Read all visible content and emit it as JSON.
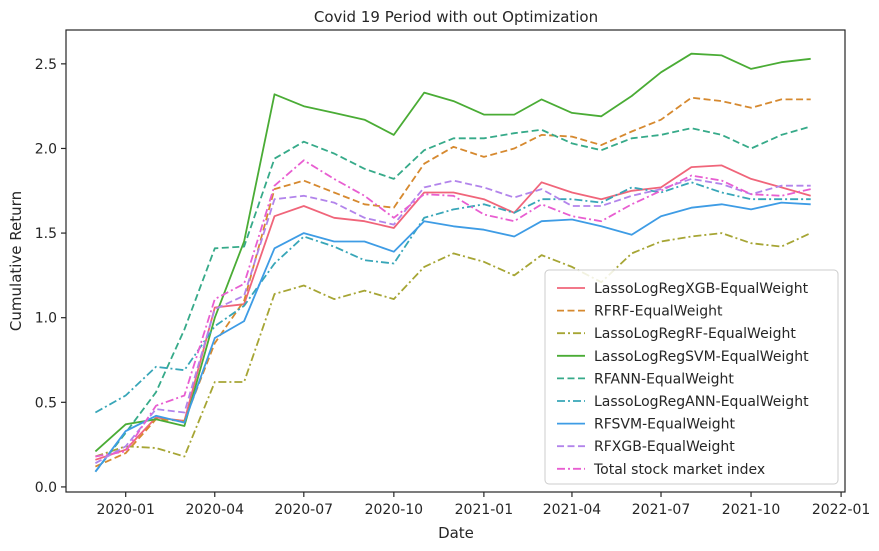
{
  "chart_data": {
    "type": "line",
    "title": "Covid 19 Period with out Optimization",
    "xlabel": "Date",
    "ylabel": "Cumulative Return",
    "x_ticks": [
      "2020-01",
      "2020-04",
      "2020-07",
      "2020-10",
      "2021-01",
      "2021-04",
      "2021-07",
      "2021-10",
      "2022-01"
    ],
    "y_ticks": [
      "0.0",
      "0.5",
      "1.0",
      "1.5",
      "2.0",
      "2.5"
    ],
    "ylim": [
      -0.03,
      2.7
    ],
    "xlim": [
      "2019-11-01",
      "2022-01-05"
    ],
    "legend_position": "lower-right",
    "x": [
      "2019-12-01",
      "2020-01-01",
      "2020-02-01",
      "2020-03-01",
      "2020-04-01",
      "2020-05-01",
      "2020-06-01",
      "2020-07-01",
      "2020-08-01",
      "2020-09-01",
      "2020-10-01",
      "2020-11-01",
      "2020-12-01",
      "2021-01-01",
      "2021-02-01",
      "2021-03-01",
      "2021-04-01",
      "2021-05-01",
      "2021-06-01",
      "2021-07-01",
      "2021-08-01",
      "2021-09-01",
      "2021-10-01",
      "2021-11-01",
      "2021-12-01"
    ],
    "series": [
      {
        "name": "LassoLogRegXGB-EqualWeight",
        "color": "#f0657a",
        "dash": "solid",
        "values": [
          0.16,
          0.22,
          0.41,
          0.39,
          1.06,
          1.08,
          1.6,
          1.66,
          1.59,
          1.57,
          1.53,
          1.74,
          1.74,
          1.7,
          1.62,
          1.8,
          1.74,
          1.7,
          1.75,
          1.77,
          1.89,
          1.9,
          1.82,
          1.77,
          1.72
        ]
      },
      {
        "name": "RFRF-EqualWeight",
        "color": "#d6892f",
        "dash": "dashed",
        "values": [
          0.12,
          0.2,
          0.4,
          0.39,
          0.85,
          1.1,
          1.76,
          1.81,
          1.74,
          1.67,
          1.65,
          1.91,
          2.01,
          1.95,
          2.0,
          2.08,
          2.07,
          2.02,
          2.1,
          2.17,
          2.3,
          2.28,
          2.24,
          2.29,
          2.29
        ]
      },
      {
        "name": "LassoLogRegRF-EqualWeight",
        "color": "#a6a534",
        "dash": "dashdot",
        "values": [
          0.18,
          0.24,
          0.23,
          0.18,
          0.62,
          0.62,
          1.14,
          1.19,
          1.11,
          1.16,
          1.11,
          1.3,
          1.38,
          1.33,
          1.25,
          1.37,
          1.3,
          1.21,
          1.38,
          1.45,
          1.48,
          1.5,
          1.44,
          1.42,
          1.5
        ]
      },
      {
        "name": "LassoLogRegSVM-EqualWeight",
        "color": "#4aac35",
        "dash": "solid",
        "values": [
          0.21,
          0.37,
          0.4,
          0.36,
          1.0,
          1.45,
          2.32,
          2.25,
          2.21,
          2.17,
          2.08,
          2.33,
          2.28,
          2.2,
          2.2,
          2.29,
          2.21,
          2.19,
          2.31,
          2.45,
          2.56,
          2.55,
          2.47,
          2.51,
          2.53
        ]
      },
      {
        "name": "RFANN-EqualWeight",
        "color": "#36aa89",
        "dash": "dashed",
        "values": [
          0.09,
          0.32,
          0.56,
          0.93,
          1.41,
          1.42,
          1.94,
          2.04,
          1.97,
          1.88,
          1.82,
          1.99,
          2.06,
          2.06,
          2.09,
          2.11,
          2.03,
          1.99,
          2.06,
          2.08,
          2.12,
          2.08,
          2.0,
          2.08,
          2.13
        ]
      },
      {
        "name": "LassoLogRegANN-EqualWeight",
        "color": "#38a6b8",
        "dash": "dashdot",
        "values": [
          0.44,
          0.54,
          0.71,
          0.69,
          0.95,
          1.07,
          1.32,
          1.48,
          1.42,
          1.34,
          1.32,
          1.59,
          1.64,
          1.67,
          1.62,
          1.7,
          1.7,
          1.68,
          1.77,
          1.74,
          1.8,
          1.74,
          1.7,
          1.7,
          1.7
        ]
      },
      {
        "name": "RFSVM-EqualWeight",
        "color": "#3e9ce5",
        "dash": "solid",
        "values": [
          0.09,
          0.33,
          0.42,
          0.38,
          0.88,
          0.98,
          1.41,
          1.5,
          1.45,
          1.45,
          1.39,
          1.57,
          1.54,
          1.52,
          1.48,
          1.57,
          1.58,
          1.54,
          1.49,
          1.6,
          1.65,
          1.67,
          1.64,
          1.68,
          1.67
        ]
      },
      {
        "name": "RFXGB-EqualWeight",
        "color": "#b284eb",
        "dash": "dashed",
        "values": [
          0.14,
          0.24,
          0.46,
          0.44,
          1.05,
          1.13,
          1.7,
          1.72,
          1.68,
          1.59,
          1.55,
          1.77,
          1.81,
          1.77,
          1.71,
          1.76,
          1.66,
          1.66,
          1.72,
          1.76,
          1.82,
          1.79,
          1.73,
          1.78,
          1.78
        ]
      },
      {
        "name": "Total stock market index",
        "color": "#e85ed1",
        "dash": "dashdot",
        "values": [
          0.18,
          0.21,
          0.48,
          0.54,
          1.11,
          1.2,
          1.78,
          1.93,
          1.82,
          1.72,
          1.59,
          1.73,
          1.72,
          1.61,
          1.57,
          1.67,
          1.6,
          1.57,
          1.67,
          1.75,
          1.84,
          1.81,
          1.73,
          1.72,
          1.76
        ]
      }
    ]
  }
}
